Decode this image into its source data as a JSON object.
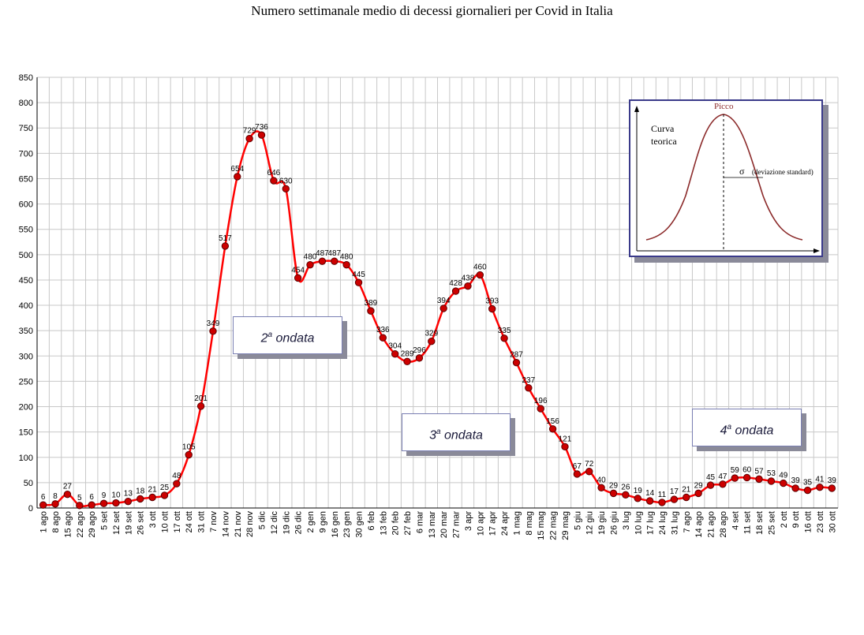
{
  "chart_data": {
    "type": "line",
    "title": "Numero settimanale medio di decessi giornalieri per Covid in Italia",
    "ylim": [
      0,
      850
    ],
    "yticks": [
      0,
      50,
      100,
      150,
      200,
      250,
      300,
      350,
      400,
      450,
      500,
      550,
      600,
      650,
      700,
      750,
      800,
      850
    ],
    "grid": true,
    "line_color": "#ff0000",
    "marker_color": "#cc0000",
    "categories": [
      "1 ago",
      "8 ago",
      "15 ago",
      "22 ago",
      "29 ago",
      "5 set",
      "12 set",
      "19 set",
      "26 set",
      "3 ott",
      "10 ott",
      "17 ott",
      "24 ott",
      "31 ott",
      "7 nov",
      "14 nov",
      "21 nov",
      "28 nov",
      "5 dic",
      "12 dic",
      "19 dic",
      "26 dic",
      "2 gen",
      "9 gen",
      "16 gen",
      "23 gen",
      "30 gen",
      "6 feb",
      "13 feb",
      "20 feb",
      "27 feb",
      "6 mar",
      "13 mar",
      "20 mar",
      "27 mar",
      "3 apr",
      "10 apr",
      "17 apr",
      "24 apr",
      "1 mag",
      "8 mag",
      "15 mag",
      "22 mag",
      "29 mag",
      "5 giu",
      "12 giu",
      "19 giu",
      "26 giu",
      "3 lug",
      "10 lug",
      "17 lug",
      "24 lug",
      "31 lug",
      "7 ago",
      "14 ago",
      "21 ago",
      "28 ago",
      "4 set",
      "11 set",
      "18 set",
      "25 set",
      "2 ott",
      "9 ott",
      "16 ott",
      "23 ott",
      "30 ott"
    ],
    "values": [
      6,
      8,
      27,
      5,
      6,
      9,
      10,
      13,
      18,
      21,
      25,
      48,
      105,
      201,
      349,
      517,
      654,
      729,
      736,
      646,
      630,
      454,
      480,
      487,
      487,
      480,
      445,
      389,
      336,
      304,
      289,
      296,
      329,
      394,
      428,
      438,
      460,
      393,
      335,
      287,
      237,
      196,
      156,
      121,
      67,
      72,
      40,
      29,
      26,
      19,
      14,
      11,
      17,
      21,
      29,
      45,
      47,
      59,
      60,
      57,
      53,
      49,
      39,
      35,
      41,
      39
    ],
    "data_labels": [
      "6",
      "8",
      "27",
      "5",
      "6",
      "9",
      "10",
      "13",
      "18",
      "21",
      "25",
      "48",
      "105",
      "201",
      "349",
      "517",
      "654",
      "729",
      "736",
      "646",
      "630",
      "454",
      "480",
      "487",
      "487",
      "480",
      "445",
      "389",
      "336",
      "304",
      "289",
      "296",
      "329",
      "394",
      "428",
      "438",
      "460",
      "393",
      "335",
      "287",
      "237",
      "196",
      "156",
      "121",
      "67",
      "72",
      "40",
      "29",
      "26",
      "19",
      "14",
      "11",
      "17",
      "21",
      "29",
      "45",
      "47",
      "59",
      "60",
      "57",
      "53",
      "49",
      "39",
      "35",
      "41",
      "39"
    ]
  },
  "annotations": {
    "wave2": {
      "main": "2",
      "sup": "a",
      "rest": " ondata"
    },
    "wave3": {
      "main": "3",
      "sup": "a",
      "rest": " ondata"
    },
    "wave4": {
      "main": "4",
      "sup": "a",
      "rest": " ondata"
    }
  },
  "inset": {
    "peak_label": "Picco",
    "curve_label_1": "Curva",
    "curve_label_2": "teorica",
    "sigma_symbol": "σ",
    "sigma_label": "(deviazione standard)",
    "border_color": "#3a3a8a",
    "curve_color": "#8b2a2a"
  }
}
